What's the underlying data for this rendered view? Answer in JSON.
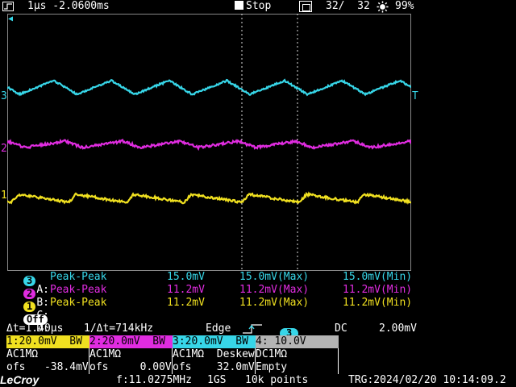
{
  "top_bar": {
    "timebase": "1µs -2.0600ms",
    "run_state": "Stop",
    "acq_count": "32/  32",
    "intensity": "99%"
  },
  "markers": {
    "ch3": "3",
    "ch2": "2",
    "ch1": "1",
    "trigger": "T"
  },
  "measurements": [
    {
      "slot": "A:",
      "channel": "3",
      "name": "Peak-Peak",
      "value": "15.0mV",
      "max": "15.0mV(Max)",
      "min": "15.0mV(Min)",
      "color": "#37d6e8"
    },
    {
      "slot": "B:",
      "channel": "2",
      "name": "Peak-Peak",
      "value": "11.2mV",
      "max": "11.2mV(Max)",
      "min": "11.2mV(Min)",
      "color": "#e02ce0"
    },
    {
      "slot": "C:",
      "channel": "1",
      "name": "Peak-Peak",
      "value": "11.2mV",
      "max": "11.2mV(Max)",
      "min": "11.2mV(Min)",
      "color": "#f0e020"
    },
    {
      "slot": "D:",
      "channel": "Off",
      "name": "",
      "value": "",
      "max": "",
      "min": "",
      "color": "#ffffff"
    }
  ],
  "cursor_line": {
    "delta_t": "Δt=1.40µs",
    "inv_delta_t": "1/Δt=714kHz",
    "trigger_type": "Edge",
    "trigger_source": "3",
    "coupling": "DC",
    "trigger_level": "2.00mV"
  },
  "channels": [
    {
      "head": "1:20.0mV  BW",
      "coupling": "AC1MΩ",
      "offset": "ofs   -38.4mV",
      "color": "#f0e020"
    },
    {
      "head": "2:20.0mV  BW",
      "coupling": "AC1MΩ",
      "offset": "ofs     0.00V",
      "color": "#e02ce0"
    },
    {
      "head": "3:20.0mV  BW",
      "coupling": "AC1MΩ  Deskew",
      "offset": "ofs    32.0mV",
      "color": "#37d6e8"
    },
    {
      "head": "4: 10.0V",
      "coupling": "DC1MΩ",
      "offset": "Empty",
      "color": "#b4b4b4"
    }
  ],
  "footer": {
    "brand": "LeCroy",
    "frequency": "f:11.0275MHz",
    "sample_rate": "1GS",
    "record_length": "10k points",
    "trigger_time": "TRG:2024/02/20 10:14:09.2"
  }
}
